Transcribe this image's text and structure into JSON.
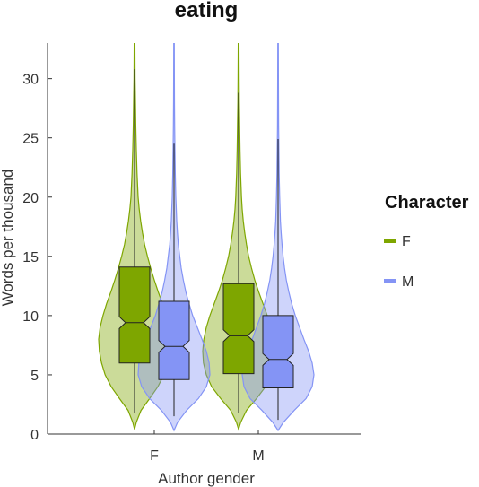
{
  "chart_data": {
    "type": "violin-box",
    "title": "eating",
    "xlabel": "Author gender",
    "ylabel": "Words per thousand",
    "ylim": [
      0,
      33
    ],
    "yticks": [
      0,
      5,
      10,
      15,
      20,
      25,
      30
    ],
    "categories": [
      "F",
      "M"
    ],
    "legend": {
      "title": "Character",
      "position": "right",
      "entries": [
        {
          "label": "F",
          "color": "#7ea600"
        },
        {
          "label": "M",
          "color": "#8494f5"
        }
      ]
    },
    "series": [
      {
        "name": "F",
        "color": "#7ea600",
        "fill": "#7ea600",
        "groups": [
          {
            "category": "F",
            "min": 1.8,
            "q1": 6.0,
            "median": 9.4,
            "q3": 14.1,
            "max": 30.8,
            "notch_low": 8.9,
            "notch_high": 9.9,
            "violin": [
              [
                0.4,
                0
              ],
              [
                1,
                0.05
              ],
              [
                2,
                0.18
              ],
              [
                3,
                0.42
              ],
              [
                4,
                0.65
              ],
              [
                5,
                0.82
              ],
              [
                6,
                0.92
              ],
              [
                7,
                0.98
              ],
              [
                8,
                1.0
              ],
              [
                9,
                0.96
              ],
              [
                10,
                0.88
              ],
              [
                11,
                0.78
              ],
              [
                12,
                0.66
              ],
              [
                13,
                0.55
              ],
              [
                14,
                0.45
              ],
              [
                15,
                0.36
              ],
              [
                16,
                0.28
              ],
              [
                17,
                0.22
              ],
              [
                18,
                0.17
              ],
              [
                19,
                0.13
              ],
              [
                20,
                0.1
              ],
              [
                22,
                0.07
              ],
              [
                24,
                0.05
              ],
              [
                26,
                0.035
              ],
              [
                28,
                0.025
              ],
              [
                30,
                0.015
              ],
              [
                33,
                0.01
              ]
            ]
          },
          {
            "category": "M",
            "min": 1.8,
            "q1": 5.1,
            "median": 8.3,
            "q3": 12.7,
            "max": 28.8,
            "notch_low": 7.8,
            "notch_high": 8.8,
            "violin": [
              [
                0.4,
                0
              ],
              [
                1,
                0.06
              ],
              [
                2,
                0.22
              ],
              [
                3,
                0.5
              ],
              [
                4,
                0.75
              ],
              [
                5,
                0.9
              ],
              [
                6,
                0.98
              ],
              [
                7,
                1.0
              ],
              [
                8,
                0.97
              ],
              [
                9,
                0.9
              ],
              [
                10,
                0.8
              ],
              [
                11,
                0.68
              ],
              [
                12,
                0.56
              ],
              [
                13,
                0.45
              ],
              [
                14,
                0.36
              ],
              [
                15,
                0.28
              ],
              [
                16,
                0.22
              ],
              [
                17,
                0.17
              ],
              [
                18,
                0.13
              ],
              [
                19,
                0.1
              ],
              [
                20,
                0.08
              ],
              [
                22,
                0.055
              ],
              [
                24,
                0.04
              ],
              [
                26,
                0.03
              ],
              [
                28,
                0.02
              ],
              [
                30,
                0.015
              ],
              [
                33,
                0.01
              ]
            ]
          }
        ]
      },
      {
        "name": "M",
        "color": "#8494f5",
        "fill": "#8494f5",
        "groups": [
          {
            "category": "F",
            "min": 1.5,
            "q1": 4.6,
            "median": 7.4,
            "q3": 11.2,
            "max": 24.5,
            "notch_low": 6.9,
            "notch_high": 7.9,
            "violin": [
              [
                0.3,
                0
              ],
              [
                1,
                0.1
              ],
              [
                2,
                0.35
              ],
              [
                3,
                0.68
              ],
              [
                4,
                0.9
              ],
              [
                5,
                1.0
              ],
              [
                6,
                0.98
              ],
              [
                7,
                0.9
              ],
              [
                8,
                0.78
              ],
              [
                9,
                0.65
              ],
              [
                10,
                0.52
              ],
              [
                11,
                0.42
              ],
              [
                12,
                0.33
              ],
              [
                13,
                0.26
              ],
              [
                14,
                0.2
              ],
              [
                15,
                0.16
              ],
              [
                16,
                0.12
              ],
              [
                17,
                0.095
              ],
              [
                18,
                0.075
              ],
              [
                20,
                0.05
              ],
              [
                22,
                0.035
              ],
              [
                24,
                0.025
              ],
              [
                26,
                0.018
              ],
              [
                28,
                0.013
              ],
              [
                30,
                0.01
              ],
              [
                33,
                0.008
              ]
            ]
          },
          {
            "category": "M",
            "min": 1.2,
            "q1": 3.9,
            "median": 6.3,
            "q3": 10.0,
            "max": 24.9,
            "notch_low": 5.8,
            "notch_high": 6.8,
            "violin": [
              [
                0.3,
                0
              ],
              [
                1,
                0.15
              ],
              [
                2,
                0.45
              ],
              [
                3,
                0.78
              ],
              [
                4,
                0.95
              ],
              [
                5,
                1.0
              ],
              [
                6,
                0.95
              ],
              [
                7,
                0.85
              ],
              [
                8,
                0.72
              ],
              [
                9,
                0.6
              ],
              [
                10,
                0.48
              ],
              [
                11,
                0.38
              ],
              [
                12,
                0.3
              ],
              [
                13,
                0.23
              ],
              [
                14,
                0.18
              ],
              [
                15,
                0.14
              ],
              [
                16,
                0.11
              ],
              [
                17,
                0.085
              ],
              [
                18,
                0.065
              ],
              [
                20,
                0.045
              ],
              [
                22,
                0.03
              ],
              [
                24,
                0.022
              ],
              [
                26,
                0.016
              ],
              [
                28,
                0.012
              ],
              [
                30,
                0.009
              ],
              [
                33,
                0.007
              ]
            ]
          }
        ]
      }
    ]
  }
}
